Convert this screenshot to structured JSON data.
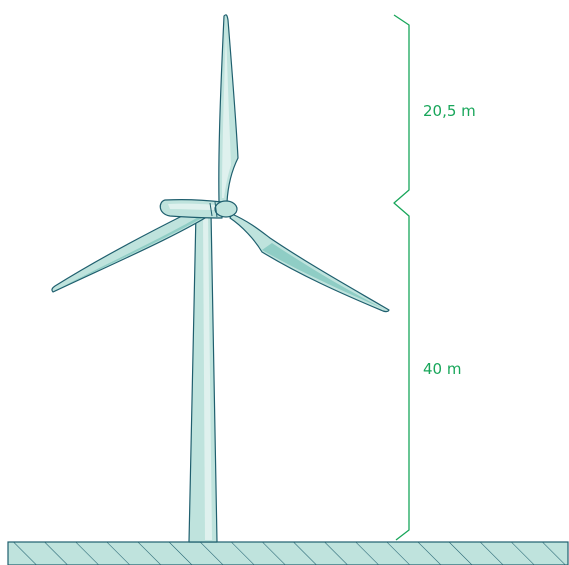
{
  "colors": {
    "turbine_fill": "#bfe3dd",
    "turbine_shade": "#8fcdc5",
    "turbine_highlight": "#dff1ee",
    "turbine_stroke": "#1f5f6e",
    "dimension": "#18a65a",
    "ground_fill": "#bfe3dd",
    "ground_stroke": "#1f5f6e"
  },
  "dimensions": {
    "blade_length_label": "20,5 m",
    "hub_height_label": "40 m"
  }
}
